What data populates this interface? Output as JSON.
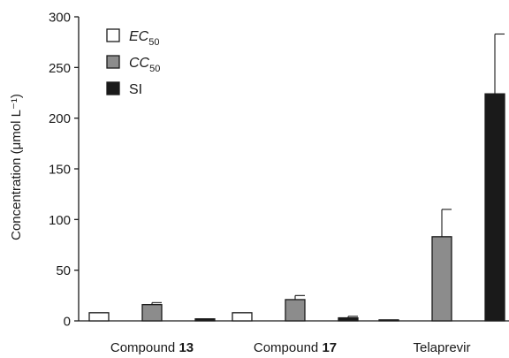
{
  "chart_data": {
    "type": "bar",
    "ylabel": "Concentration (μmol L⁻¹)",
    "ylim": [
      0,
      300
    ],
    "yticks": [
      0,
      50,
      100,
      150,
      200,
      250,
      300
    ],
    "grid": false,
    "legend_position": "top-left",
    "categories": [
      {
        "prefix": "Compound ",
        "bold": "13"
      },
      {
        "prefix": "Compound ",
        "bold": "17"
      },
      {
        "prefix": "Telaprevir",
        "bold": ""
      }
    ],
    "series": [
      {
        "name": "EC",
        "subscript": "50",
        "italic": true,
        "color": "#ffffff",
        "values": [
          8,
          8,
          1
        ],
        "errors": [
          0,
          0,
          0
        ]
      },
      {
        "name": "CC",
        "subscript": "50",
        "italic": true,
        "color": "#8c8c8c",
        "values": [
          16,
          21,
          83
        ],
        "errors": [
          2,
          4,
          27
        ]
      },
      {
        "name": "SI",
        "subscript": "",
        "italic": false,
        "color": "#1a1a1a",
        "values": [
          2,
          3,
          224
        ],
        "errors": [
          0,
          1.5,
          59
        ]
      }
    ]
  }
}
